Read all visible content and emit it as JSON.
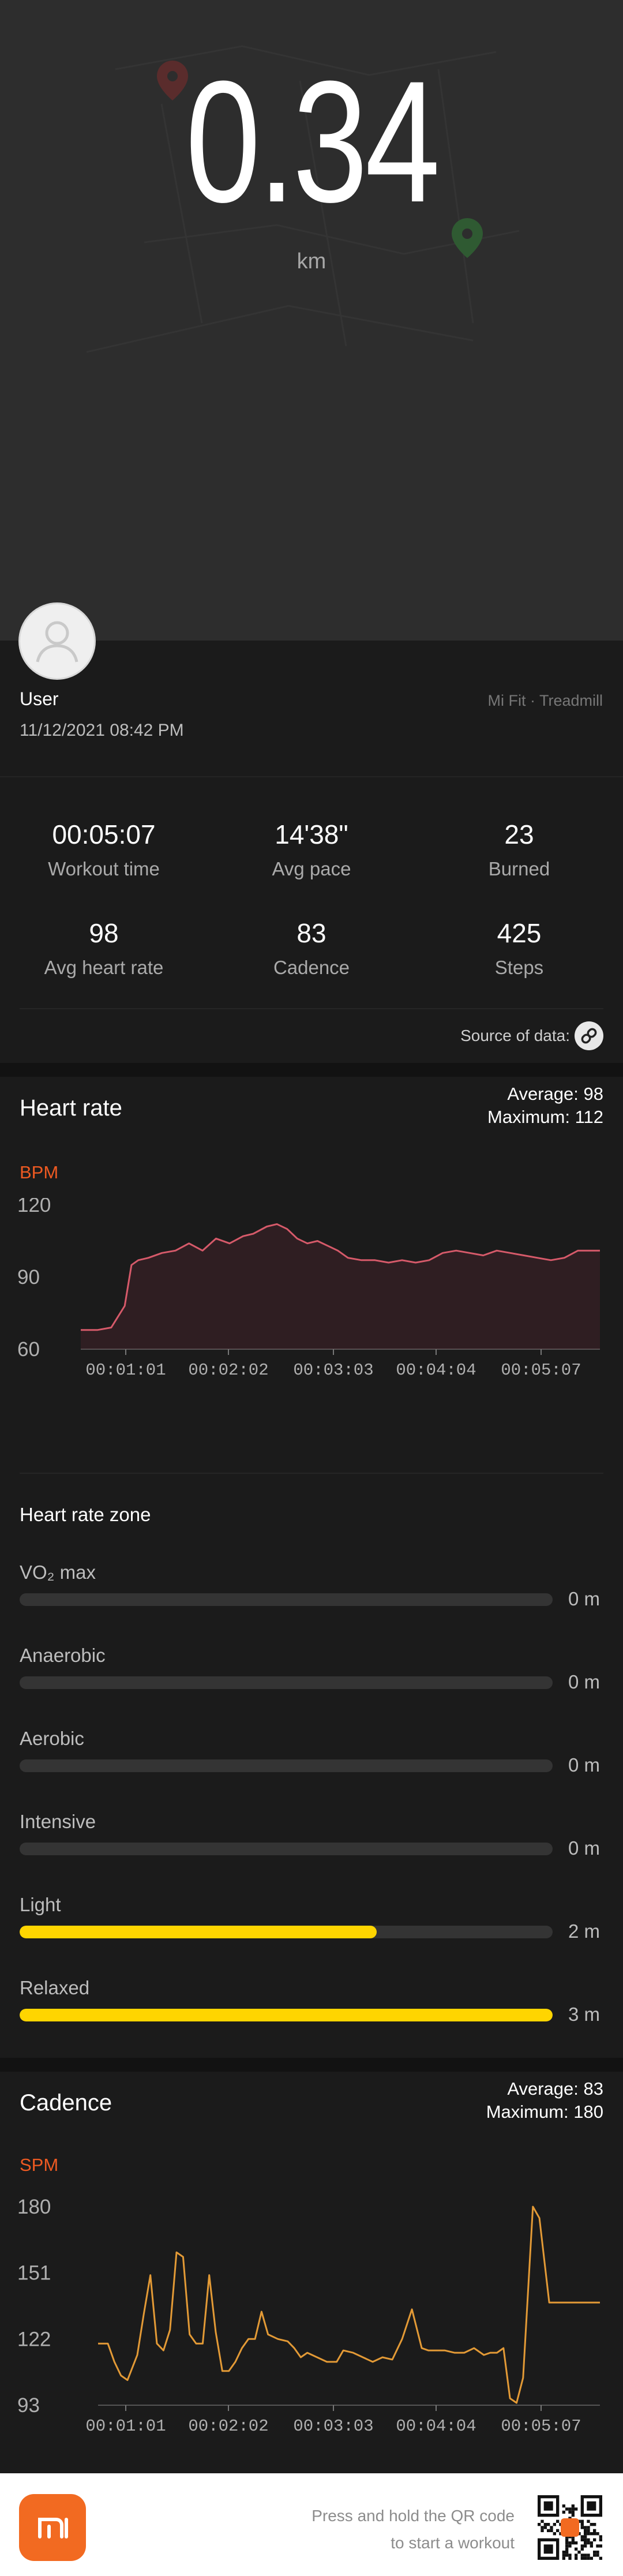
{
  "hero": {
    "value": "0.34",
    "unit": "km"
  },
  "user": {
    "name": "User",
    "datetime": "11/12/2021 08:42 PM",
    "source": "Mi Fit · Treadmill"
  },
  "stats": [
    {
      "value": "00:05:07",
      "label": "Workout time"
    },
    {
      "value": "14'38\"",
      "label": "Avg pace"
    },
    {
      "value": "23",
      "label": "Burned"
    },
    {
      "value": "98",
      "label": "Avg heart rate"
    },
    {
      "value": "83",
      "label": "Cadence"
    },
    {
      "value": "425",
      "label": "Steps"
    }
  ],
  "source_of_data_label": "Source of data:",
  "heart_rate": {
    "title": "Heart rate",
    "average_label": "Average: 98",
    "maximum_label": "Maximum: 112",
    "unit_label": "BPM",
    "zone_title": "Heart rate zone",
    "zones": [
      {
        "name": "VO₂ max",
        "value": "0 m",
        "fraction": 0
      },
      {
        "name": "Anaerobic",
        "value": "0 m",
        "fraction": 0
      },
      {
        "name": "Aerobic",
        "value": "0 m",
        "fraction": 0
      },
      {
        "name": "Intensive",
        "value": "0 m",
        "fraction": 0
      },
      {
        "name": "Light",
        "value": "2 m",
        "fraction": 0.67
      },
      {
        "name": "Relaxed",
        "value": "3 m",
        "fraction": 1.0
      }
    ]
  },
  "cadence": {
    "title": "Cadence",
    "average_label": "Average: 83",
    "maximum_label": "Maximum: 180",
    "unit_label": "SPM"
  },
  "footer": {
    "line1": "Press and hold the QR code",
    "line2": "to start a workout"
  },
  "chart_data": [
    {
      "type": "line",
      "name": "heart-rate-chart",
      "ylabel": "BPM",
      "ylim": [
        60,
        120
      ],
      "yticks": [
        60,
        90,
        120
      ],
      "xticks": [
        "00:01:01",
        "00:02:02",
        "00:03:03",
        "00:04:04",
        "00:05:07"
      ],
      "xlim": [
        0,
        307
      ],
      "color": "#d65a6a",
      "series": [
        {
          "x": [
            0,
            10,
            18,
            26,
            30,
            34,
            40,
            48,
            56,
            64,
            72,
            80,
            88,
            96,
            102,
            110,
            116,
            122,
            128,
            134,
            140,
            146,
            152,
            158,
            166,
            174,
            182,
            190,
            198,
            206,
            214,
            222,
            230,
            238,
            246,
            254,
            262,
            270,
            278,
            286,
            294,
            302,
            307
          ],
          "values": [
            68,
            68,
            69,
            78,
            95,
            97,
            98,
            100,
            101,
            104,
            101,
            106,
            104,
            107,
            108,
            111,
            112,
            110,
            106,
            104,
            105,
            103,
            101,
            98,
            97,
            97,
            96,
            97,
            96,
            97,
            100,
            101,
            100,
            99,
            101,
            100,
            99,
            98,
            97,
            98,
            101,
            101,
            101
          ]
        }
      ]
    },
    {
      "type": "line",
      "name": "cadence-chart",
      "ylabel": "SPM",
      "ylim": [
        93,
        180
      ],
      "yticks": [
        93,
        122,
        151,
        180
      ],
      "xticks": [
        "00:01:01",
        "00:02:02",
        "00:03:03",
        "00:04:04",
        "00:05:07"
      ],
      "xlim": [
        0,
        307
      ],
      "color": "#e39a36",
      "series": [
        {
          "x": [
            0,
            6,
            10,
            14,
            18,
            24,
            28,
            32,
            36,
            40,
            44,
            48,
            52,
            56,
            60,
            64,
            68,
            72,
            76,
            80,
            84,
            88,
            92,
            96,
            100,
            104,
            110,
            116,
            120,
            124,
            128,
            134,
            140,
            146,
            150,
            156,
            162,
            168,
            174,
            180,
            186,
            192,
            198,
            202,
            206,
            212,
            218,
            224,
            230,
            236,
            240,
            244,
            248,
            252,
            256,
            260,
            266,
            270,
            276,
            282,
            286,
            290,
            292,
            294,
            296,
            298,
            300,
            302,
            304,
            307
          ],
          "values": [
            120,
            120,
            112,
            106,
            104,
            115,
            133,
            150,
            120,
            117,
            126,
            160,
            158,
            124,
            120,
            120,
            150,
            125,
            108,
            108,
            112,
            118,
            122,
            122,
            134,
            124,
            122,
            121,
            118,
            114,
            116,
            114,
            112,
            112,
            117,
            116,
            114,
            112,
            114,
            113,
            122,
            135,
            118,
            117,
            117,
            117,
            116,
            116,
            118,
            115,
            116,
            116,
            118,
            96,
            94,
            105,
            180,
            175,
            138,
            138,
            138,
            138,
            138,
            138,
            138,
            138,
            138,
            138,
            138,
            138
          ]
        }
      ]
    }
  ]
}
